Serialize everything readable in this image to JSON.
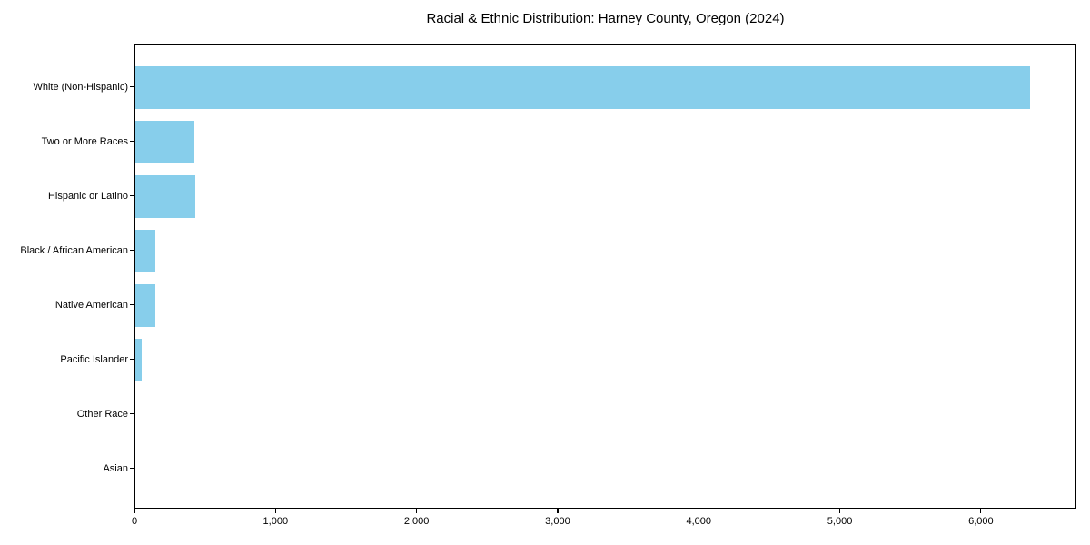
{
  "title": "Racial & Ethnic Distribution: Harney County, Oregon (2024)",
  "colors": {
    "bar": "#87CEEB",
    "axis": "#000000",
    "text": "#000000",
    "background": "#FFFFFF"
  },
  "chart_data": {
    "type": "bar",
    "orientation": "horizontal",
    "title": "Racial & Ethnic Distribution: Harney County, Oregon (2024)",
    "xlabel": "",
    "ylabel": "",
    "categories": [
      "White (Non-Hispanic)",
      "Two or More Races",
      "Hispanic or Latino",
      "Black / African American",
      "Native American",
      "Pacific Islander",
      "Other Race",
      "Asian"
    ],
    "values": [
      6340,
      421,
      428,
      144,
      139,
      45,
      0,
      0
    ],
    "xlim": [
      0,
      6660
    ],
    "xticks": [
      0,
      1000,
      2000,
      3000,
      4000,
      5000,
      6000
    ],
    "xtick_labels": [
      "0",
      "1,000",
      "2,000",
      "3,000",
      "4,000",
      "5,000",
      "6,000"
    ],
    "grid": false,
    "legend": null,
    "bar_color": "#87CEEB"
  }
}
